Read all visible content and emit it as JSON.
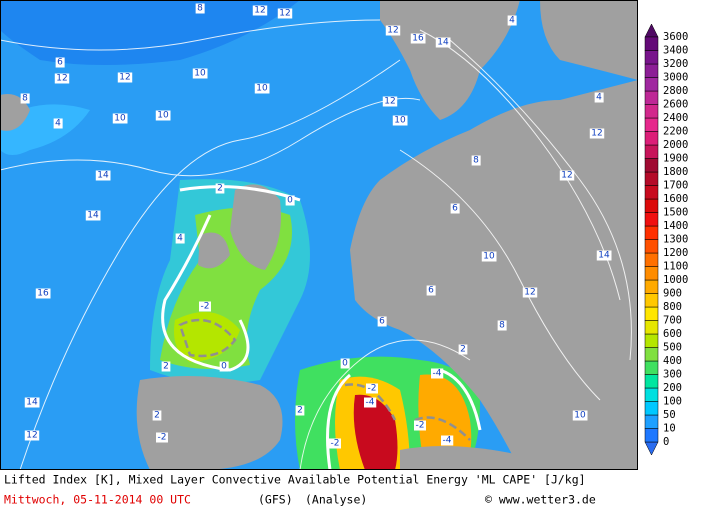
{
  "caption": {
    "line1": "Lifted Index [K], Mixed Layer Convective Available Potential Energy 'ML CAPE' [J/kg]",
    "date": "Mittwoch, 05-11-2014  00 UTC",
    "model": "(GFS)",
    "run": "(Analyse)",
    "source": "© www.wetter3.de"
  },
  "colorbar": {
    "levels": [
      0,
      10,
      50,
      100,
      200,
      300,
      400,
      500,
      600,
      700,
      800,
      900,
      1000,
      1100,
      1200,
      1300,
      1400,
      1500,
      1600,
      1700,
      1800,
      1900,
      2000,
      2200,
      2400,
      2600,
      2800,
      3000,
      3200,
      3400,
      3600
    ],
    "colors": [
      "#1e78ff",
      "#1ea0ff",
      "#00c8ff",
      "#00e0e0",
      "#00e6a0",
      "#40e060",
      "#80e040",
      "#b4e600",
      "#e6e600",
      "#ffe600",
      "#ffc800",
      "#ffaa00",
      "#ff8c00",
      "#ff7000",
      "#ff5000",
      "#ff3000",
      "#f01010",
      "#dc0a0a",
      "#c80a1e",
      "#b40a28",
      "#a00a32",
      "#c8145a",
      "#dc1e78",
      "#e6288c",
      "#d2288c",
      "#be2896",
      "#a028a0",
      "#8c1e96",
      "#78148c",
      "#640a78"
    ],
    "under_color": "#2a6cf0",
    "over_color": "#500a64"
  },
  "contour_labels": [
    "8",
    "12",
    "12",
    "6",
    "12",
    "12",
    "10",
    "10",
    "8",
    "10",
    "10",
    "4",
    "14",
    "14",
    "16",
    "14",
    "12",
    "-2",
    "-2",
    "-4",
    "-2",
    "-4",
    "-2",
    "-4",
    "12",
    "16",
    "14",
    "4",
    "12",
    "10",
    "8",
    "6",
    "10",
    "12",
    "14",
    "12",
    "12",
    "4",
    "8",
    "6",
    "2",
    "10",
    "6",
    "0",
    "0",
    "2",
    "2",
    "-2",
    "0",
    "2",
    "4",
    "2"
  ]
}
